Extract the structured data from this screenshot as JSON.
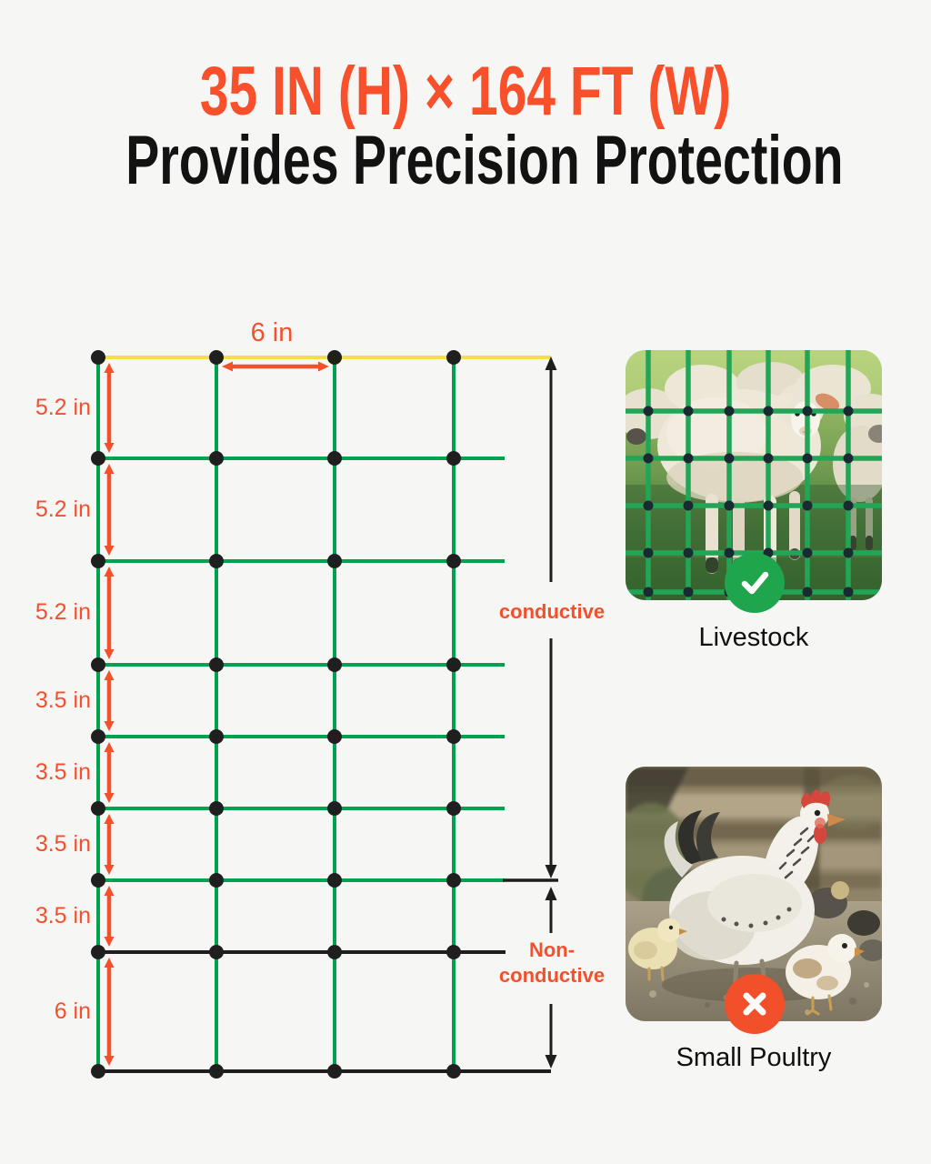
{
  "page": {
    "background": "#F6F6F5"
  },
  "header": {
    "title": "35 IN (H) × 164 FT (W)",
    "subtitle": "Provides Precision Protection",
    "title_color": "#F8502A",
    "subtitle_color": "#121212"
  },
  "diagram": {
    "horizontal_spacing_label": "6 in",
    "row_gap_labels": [
      "5.2 in",
      "5.2 in",
      "5.2 in",
      "3.5 in",
      "3.5 in",
      "3.5 in",
      "3.5 in",
      "6 in"
    ],
    "conductive_label": "conductive",
    "non_conductive_lines": [
      "Non-",
      "conductive"
    ],
    "colors": {
      "wire_green": "#00A14F",
      "wire_yellow": "#F5DE4A",
      "wire_black": "#1E1E1E",
      "arrow_orange": "#F4502C",
      "label_orange": "#F4502C",
      "post_dot": "#1F1F1F",
      "net_overlay_green": "#23A557"
    }
  },
  "cards": [
    {
      "label": "Livestock",
      "suitability": "suitable",
      "icon": "check-icon",
      "badge_color": "#1FA54C"
    },
    {
      "label": "Small Poultry",
      "suitability": "not-suitable",
      "icon": "x-icon",
      "badge_color": "#F1502B"
    }
  ]
}
